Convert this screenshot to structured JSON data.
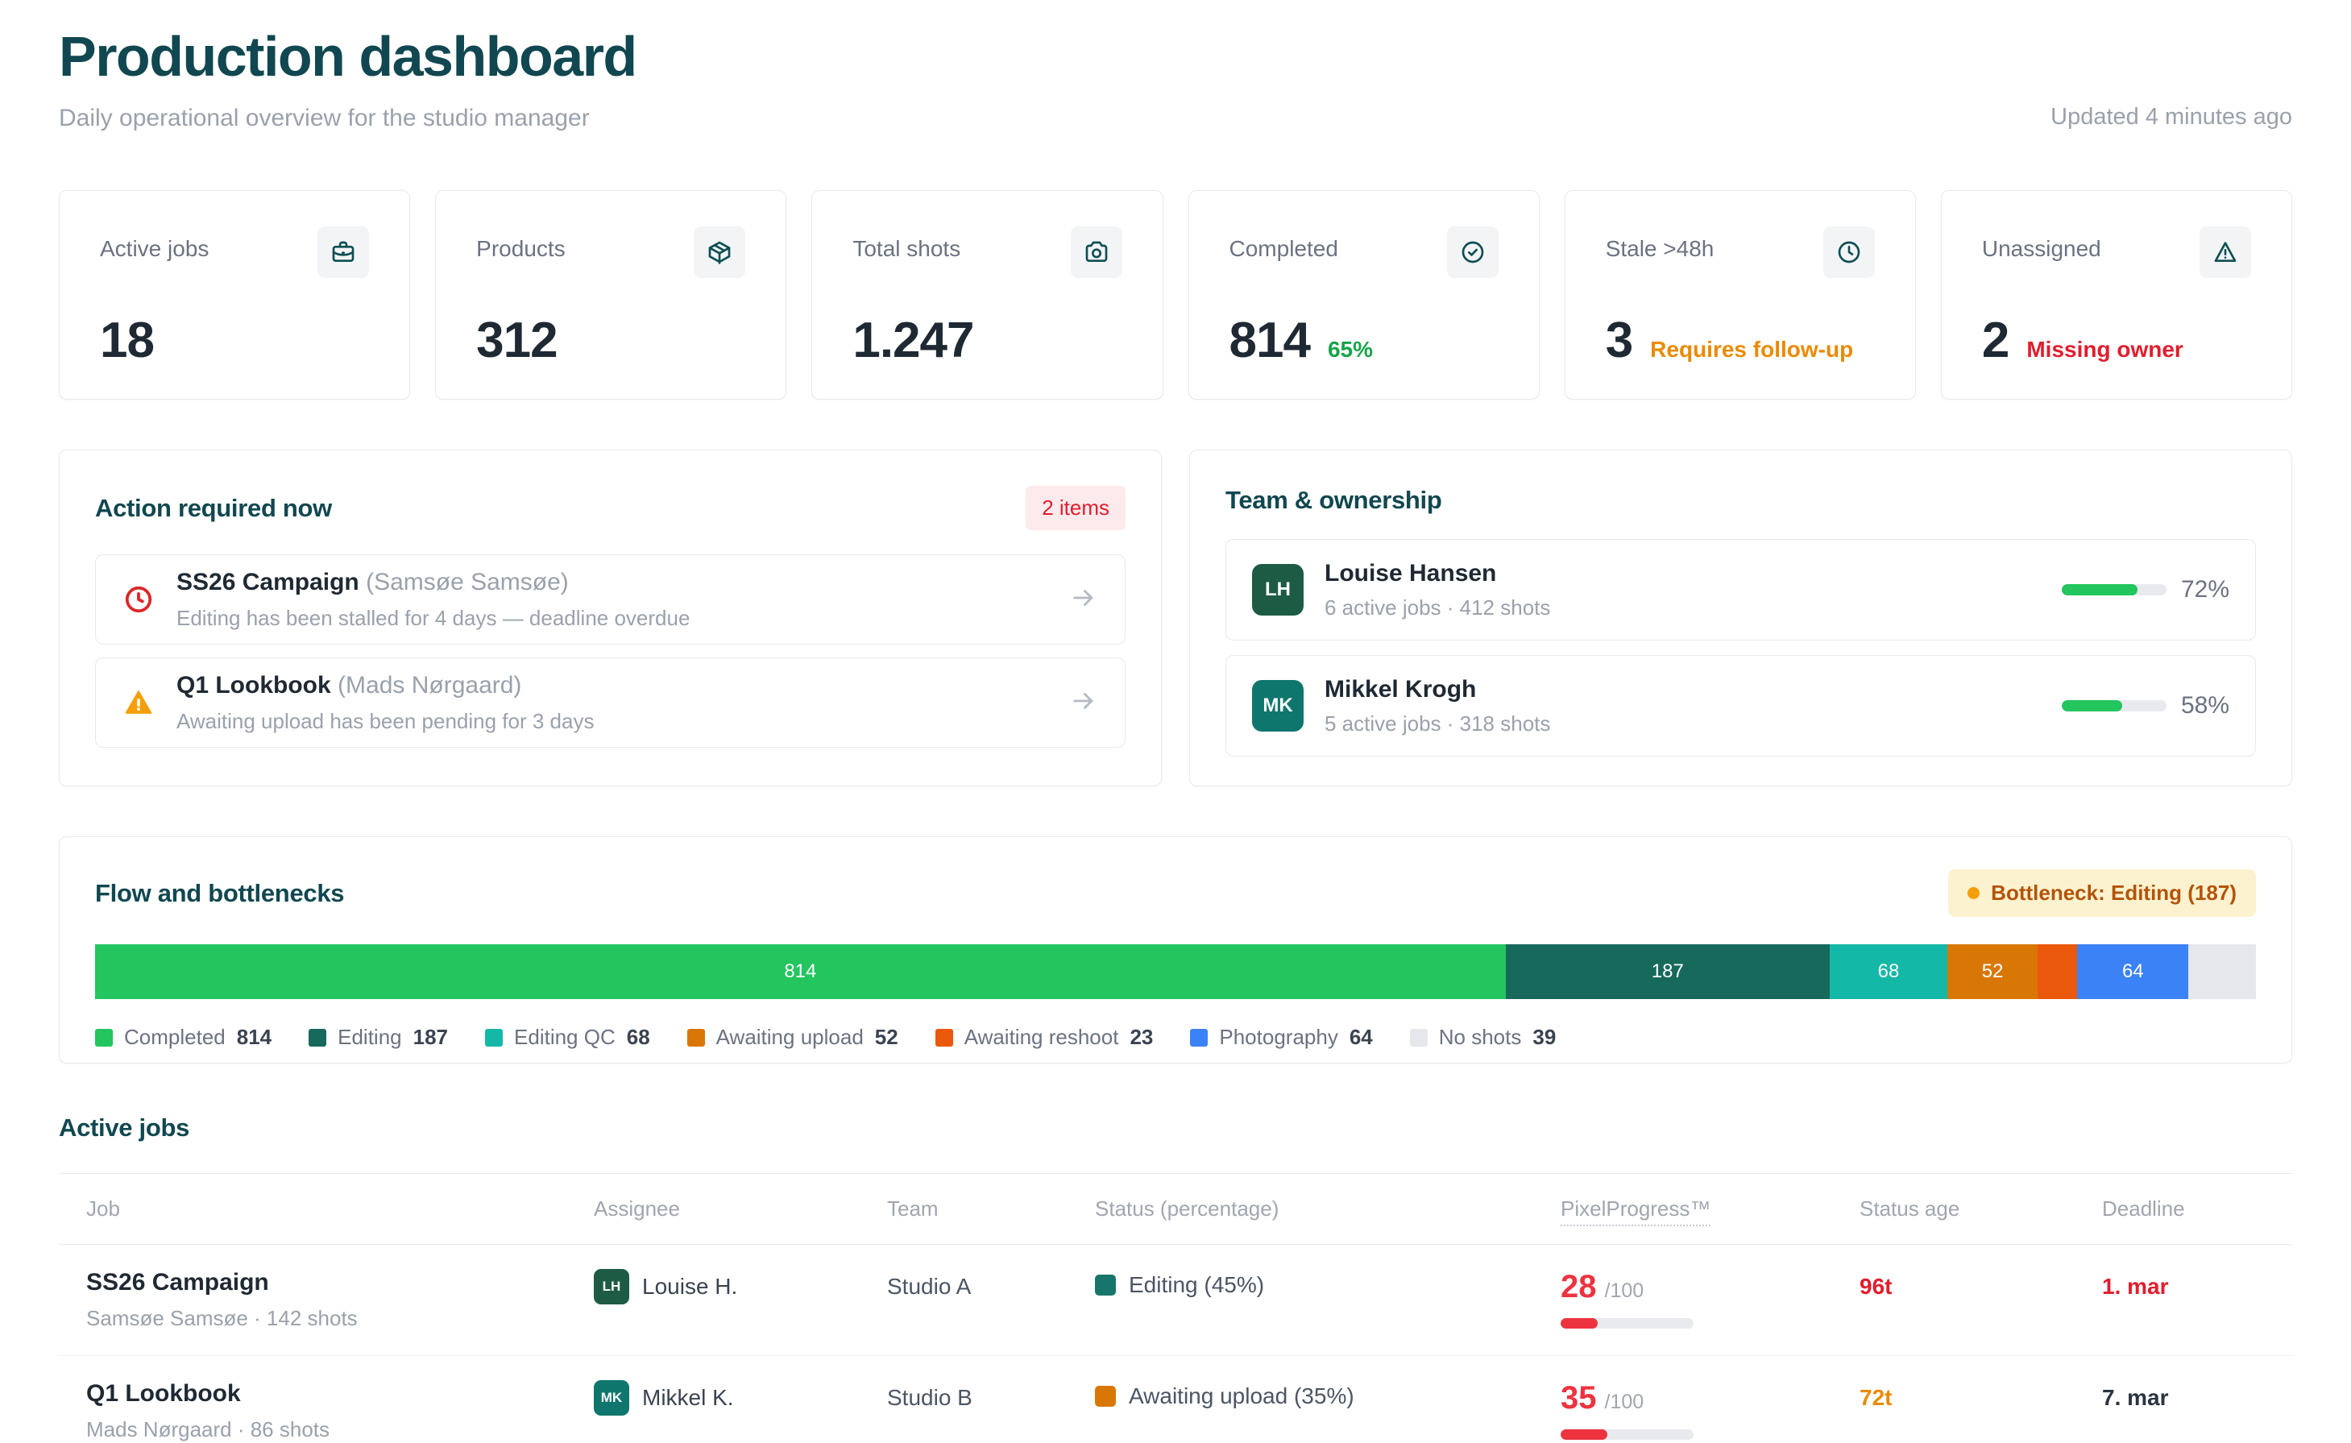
{
  "theme": {
    "heading": "#114750",
    "ink": "#1f2933",
    "gray": "#9aa1ab",
    "gray2": "#6b7280",
    "border": "#e7e9ec",
    "chipbg": "#f3f4f6",
    "iconteal": "#0d4f53",
    "trackc": "#e8eaed",
    "green": "#22c55e",
    "red": "#e11d2d"
  },
  "header": {
    "title": "Production dashboard",
    "subtitle": "Daily operational overview for the studio manager",
    "updated": "Updated 4 minutes ago"
  },
  "stats": [
    {
      "label": "Active jobs",
      "icon": "briefcase",
      "value": "18"
    },
    {
      "label": "Products",
      "icon": "package",
      "value": "312"
    },
    {
      "label": "Total shots",
      "icon": "camera",
      "value": "1.247"
    },
    {
      "label": "Completed",
      "icon": "check-circle",
      "value": "814",
      "sub": "65%",
      "sub_color": "#16a34a"
    },
    {
      "label": "Stale >48h",
      "icon": "clock",
      "value": "3",
      "sub": "Requires follow-up",
      "sub_color": "#ea8a00"
    },
    {
      "label": "Unassigned",
      "icon": "alert-triangle",
      "value": "2",
      "sub": "Missing owner",
      "sub_color": "#e11d2d"
    }
  ],
  "action_required": {
    "title": "Action required now",
    "badge": "2 items",
    "items": [
      {
        "icon": "clock-alert",
        "icon_color": "#dc2626",
        "title": "SS26 Campaign",
        "paren": "(Samsøe Samsøe)",
        "description": "Editing has been stalled for 4 days — deadline overdue"
      },
      {
        "icon": "warning-triangle",
        "icon_color": "#f59e0b",
        "title": "Q1 Lookbook",
        "paren": "(Mads Nørgaard)",
        "description": "Awaiting upload has been pending for 3 days"
      }
    ]
  },
  "team": {
    "title": "Team & ownership",
    "members": [
      {
        "initials": "LH",
        "name": "Louise Hansen",
        "meta": "6 active jobs · 412 shots",
        "percent": 72,
        "percent_label": "72%",
        "avatar_color": "#1d5b44",
        "bar_color": "#22c55e"
      },
      {
        "initials": "MK",
        "name": "Mikkel Krogh",
        "meta": "5 active jobs · 318 shots",
        "percent": 58,
        "percent_label": "58%",
        "avatar_color": "#0f766e",
        "bar_color": "#22c55e"
      }
    ]
  },
  "chart_data": {
    "type": "bar",
    "variant": "stacked-horizontal",
    "title": "Flow and bottlenecks",
    "total": 1247,
    "legend_position": "bottom",
    "annotation": "Bottleneck: Editing (187)",
    "segments": [
      {
        "label": "Completed",
        "value": 814,
        "color": "#22c55e",
        "bar_label": "814"
      },
      {
        "label": "Editing",
        "value": 187,
        "color": "#17695c",
        "bar_label": "187"
      },
      {
        "label": "Editing QC",
        "value": 68,
        "color": "#14b8a6",
        "bar_label": "68"
      },
      {
        "label": "Awaiting upload",
        "value": 52,
        "color": "#d97706",
        "bar_label": "52"
      },
      {
        "label": "Awaiting reshoot",
        "value": 23,
        "color": "#ea580c",
        "bar_label": ""
      },
      {
        "label": "Photography",
        "value": 64,
        "color": "#3b82f6",
        "bar_label": "64"
      },
      {
        "label": "No shots",
        "value": 39,
        "color": "#e5e7eb",
        "bar_label": ""
      }
    ]
  },
  "jobs": {
    "title": "Active jobs",
    "columns": [
      "Job",
      "Assignee",
      "Team",
      "Status (percentage)",
      "PixelProgress™",
      "Status age",
      "Deadline"
    ],
    "rows": [
      {
        "job": "SS26 Campaign",
        "job_meta": "Samsøe Samsøe · 142 shots",
        "initials": "LH",
        "avatar_color": "#1d5b44",
        "assignee": "Louise H.",
        "team": "Studio A",
        "status_label": "Editing (45%)",
        "status_color": "#17756b",
        "pp_value": "28",
        "pp_max": "/100",
        "pp_pct": 28,
        "pp_color": "#ee3340",
        "status_age": "96t",
        "status_age_color": "#e11d2d",
        "deadline": "1. mar",
        "deadline_color": "#e11d2d"
      },
      {
        "job": "Q1 Lookbook",
        "job_meta": "Mads Nørgaard · 86 shots",
        "initials": "MK",
        "avatar_color": "#0f766e",
        "assignee": "Mikkel K.",
        "team": "Studio B",
        "status_label": "Awaiting upload (35%)",
        "status_color": "#d97706",
        "pp_value": "35",
        "pp_max": "/100",
        "pp_pct": 35,
        "pp_color": "#ee3340",
        "status_age": "72t",
        "status_age_color": "#ea8a00",
        "deadline": "7. mar",
        "deadline_color": "#2b3440"
      }
    ]
  }
}
